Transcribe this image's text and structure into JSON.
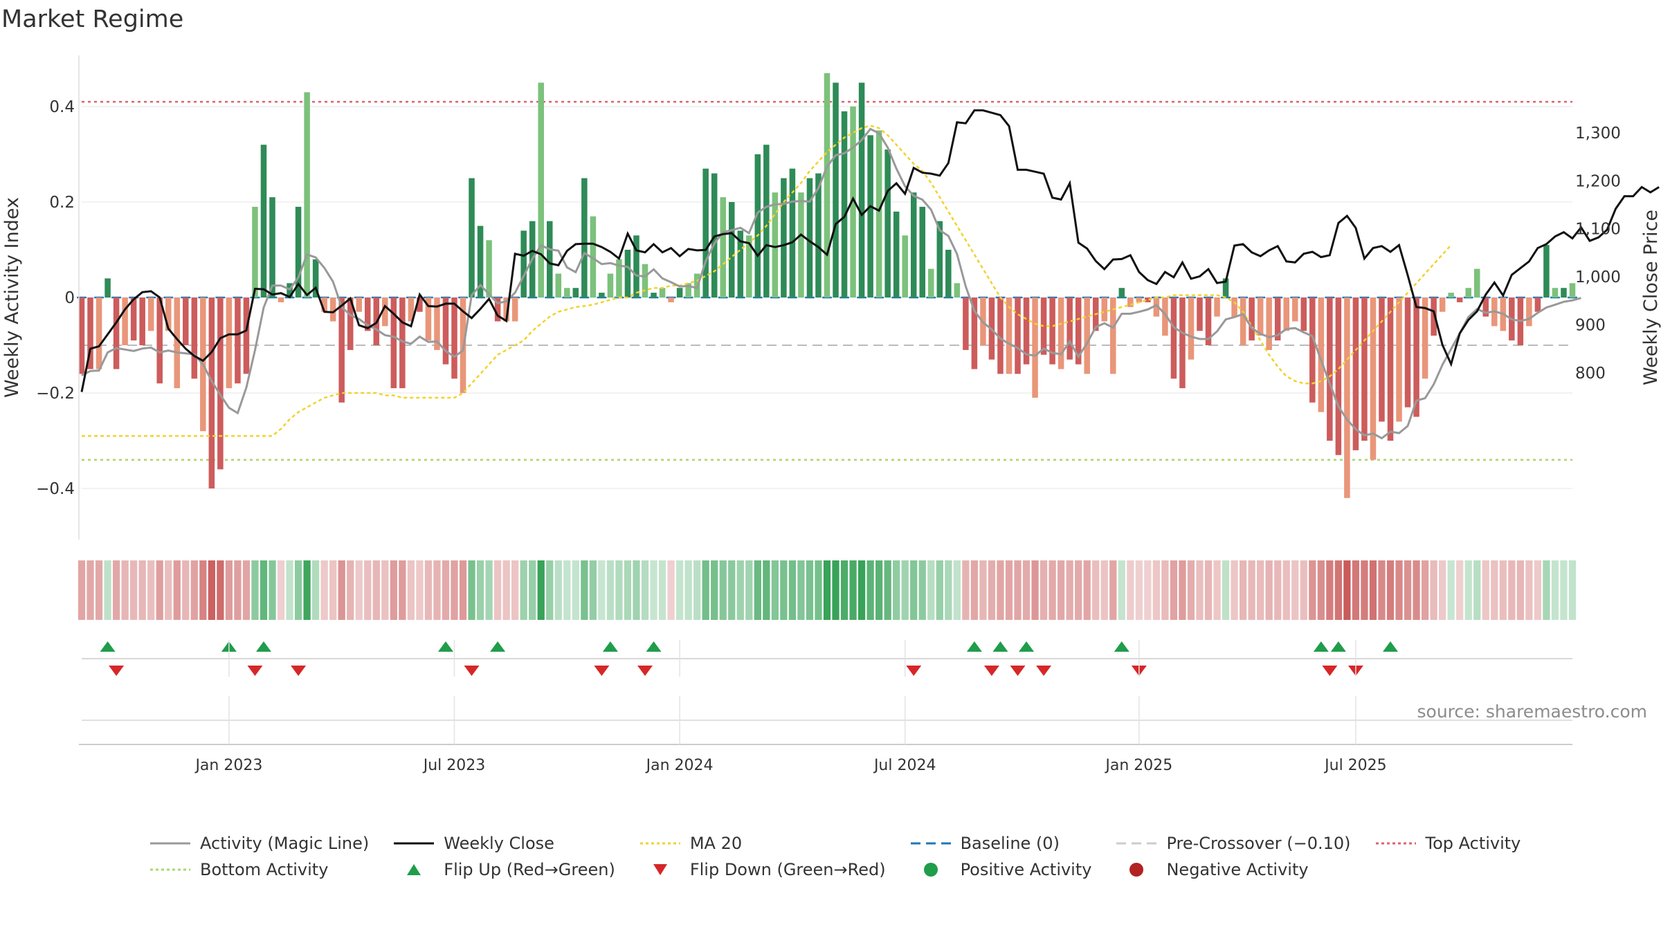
{
  "header": {
    "title": "Market Regime"
  },
  "footer": {
    "source": "source: sharemaestro.com"
  },
  "colors": {
    "strong_green": "#2e8b57",
    "light_green": "#7cc17c",
    "strong_red": "#cd5c5c",
    "light_red": "#e9967a",
    "close": "#111111",
    "magic": "#999999",
    "ma20": "#f2d22e",
    "baseline": "#1f77b4",
    "precross": "#bbbbbb",
    "top": "#e06070",
    "bottom": "#a8d86a",
    "flip_up": "#1f9d4a",
    "flip_down": "#d62728"
  },
  "chart_data": {
    "type": "bar+line",
    "xlabels": [
      "Jan 2023",
      "Jul 2023",
      "Jan 2024",
      "Jul 2024",
      "Jan 2025",
      "Jul 2025"
    ],
    "x_tick_weeks": [
      17,
      43,
      69,
      95,
      122,
      147
    ],
    "left_axis": {
      "label": "Weekly Activity Index",
      "ticks": [
        "0.4",
        "0.2",
        "0",
        "−0.2",
        "−0.4"
      ],
      "tick_values": [
        0.4,
        0.2,
        0,
        -0.2,
        -0.4
      ],
      "ylim": [
        -0.5,
        0.5
      ]
    },
    "right_axis": {
      "label": "Weekly Close Price",
      "ticks": [
        "1,300",
        "1,200",
        "1,100",
        "1,000",
        "900",
        "800"
      ],
      "tick_values": [
        1300,
        1200,
        1100,
        1000,
        900,
        800
      ],
      "ylim": [
        750,
        1350
      ]
    },
    "reference_lines": {
      "baseline": 0,
      "pre_crossover": -0.1,
      "top_activity": 0.41,
      "bottom_activity": -0.34
    },
    "activity": [
      -0.16,
      -0.15,
      -0.15,
      0.04,
      -0.15,
      -0.1,
      -0.09,
      -0.1,
      -0.07,
      -0.18,
      -0.07,
      -0.19,
      -0.1,
      -0.17,
      -0.28,
      -0.4,
      -0.36,
      -0.19,
      -0.18,
      -0.16,
      0.19,
      0.32,
      0.21,
      -0.01,
      0.03,
      0.19,
      0.43,
      0.08,
      -0.03,
      -0.05,
      -0.22,
      -0.11,
      -0.03,
      -0.07,
      -0.1,
      -0.06,
      -0.19,
      -0.19,
      -0.05,
      -0.03,
      -0.09,
      -0.11,
      -0.14,
      -0.17,
      -0.2,
      0.25,
      0.15,
      0.12,
      -0.05,
      -0.05,
      -0.05,
      0.14,
      0.16,
      0.45,
      0.16,
      0.05,
      0.02,
      0.02,
      0.25,
      0.17,
      0.01,
      0.05,
      0.08,
      0.1,
      0.13,
      0.07,
      0.01,
      0.02,
      -0.01,
      0.02,
      0.03,
      0.05,
      0.27,
      0.26,
      0.21,
      0.2,
      0.14,
      0.13,
      0.3,
      0.32,
      0.22,
      0.25,
      0.27,
      0.22,
      0.25,
      0.26,
      0.47,
      0.45,
      0.39,
      0.4,
      0.45,
      0.34,
      0.35,
      0.31,
      0.18,
      0.13,
      0.22,
      0.19,
      0.06,
      0.16,
      0.1,
      0.03,
      -0.11,
      -0.15,
      -0.1,
      -0.13,
      -0.16,
      -0.16,
      -0.16,
      -0.14,
      -0.21,
      -0.12,
      -0.14,
      -0.15,
      -0.13,
      -0.14,
      -0.16,
      -0.07,
      -0.05,
      -0.16,
      0.02,
      -0.02,
      -0.01,
      -0.01,
      -0.04,
      -0.08,
      -0.17,
      -0.19,
      -0.13,
      -0.07,
      -0.1,
      -0.04,
      0.04,
      -0.04,
      -0.1,
      -0.09,
      -0.08,
      -0.11,
      -0.09,
      -0.07,
      -0.05,
      -0.07,
      -0.22,
      -0.24,
      -0.3,
      -0.33,
      -0.42,
      -0.32,
      -0.3,
      -0.34,
      -0.26,
      -0.3,
      -0.26,
      -0.23,
      -0.25,
      -0.17,
      -0.08,
      -0.03,
      0.01,
      -0.01,
      0.02,
      0.06,
      -0.04,
      -0.06,
      -0.07,
      -0.09,
      -0.1,
      -0.06,
      -0.03,
      0.11,
      0.02,
      0.02,
      0.03
    ],
    "close": [
      760,
      850,
      855,
      880,
      905,
      932,
      953,
      968,
      970,
      957,
      892,
      870,
      850,
      835,
      825,
      843,
      872,
      880,
      880,
      888,
      975,
      974,
      963,
      966,
      958,
      985,
      962,
      977,
      927,
      926,
      940,
      955,
      899,
      893,
      904,
      939,
      923,
      905,
      897,
      963,
      939,
      938,
      944,
      944,
      928,
      914,
      933,
      954,
      919,
      908,
      1048,
      1044,
      1054,
      1047,
      1028,
      1024,
      1054,
      1068,
      1069,
      1069,
      1062,
      1052,
      1038,
      1090,
      1055,
      1051,
      1068,
      1051,
      1060,
      1043,
      1058,
      1055,
      1056,
      1084,
      1089,
      1091,
      1074,
      1070,
      1044,
      1066,
      1062,
      1066,
      1072,
      1088,
      1074,
      1062,
      1046,
      1110,
      1125,
      1163,
      1129,
      1147,
      1138,
      1179,
      1195,
      1173,
      1227,
      1217,
      1215,
      1211,
      1237,
      1322,
      1320,
      1347,
      1347,
      1342,
      1337,
      1314,
      1223,
      1223,
      1219,
      1215,
      1165,
      1161,
      1195,
      1071,
      1059,
      1033,
      1016,
      1036,
      1037,
      1045,
      1010,
      993,
      985,
      1010,
      999,
      1030,
      996,
      1001,
      1016,
      987,
      990,
      1065,
      1068,
      1051,
      1043,
      1055,
      1064,
      1032,
      1030,
      1048,
      1052,
      1041,
      1045,
      1112,
      1127,
      1102,
      1038,
      1060,
      1064,
      1052,
      1066,
      1003,
      937,
      935,
      928,
      858,
      818,
      882,
      910,
      928,
      963,
      988,
      961,
      1004,
      1018,
      1032,
      1060,
      1068,
      1084,
      1093,
      1080,
      1103,
      1075,
      1082,
      1098,
      1142,
      1168,
      1168,
      1187,
      1176,
      1187
    ],
    "magic_line": [
      -0.163,
      -0.154,
      -0.153,
      -0.115,
      -0.106,
      -0.109,
      -0.112,
      -0.107,
      -0.105,
      -0.115,
      -0.111,
      -0.115,
      -0.117,
      -0.119,
      -0.14,
      -0.175,
      -0.204,
      -0.231,
      -0.242,
      -0.189,
      -0.11,
      -0.021,
      0.025,
      0.025,
      0.017,
      0.042,
      0.09,
      0.084,
      0.062,
      0.033,
      -0.02,
      -0.037,
      -0.045,
      -0.058,
      -0.067,
      -0.079,
      -0.082,
      -0.092,
      -0.097,
      -0.082,
      -0.093,
      -0.092,
      -0.112,
      -0.124,
      -0.111,
      0.005,
      0.026,
      0.007,
      -0.012,
      -0.008,
      0.01,
      0.045,
      0.081,
      0.109,
      0.101,
      0.098,
      0.063,
      0.053,
      0.093,
      0.082,
      0.07,
      0.072,
      0.067,
      0.064,
      0.046,
      0.044,
      0.059,
      0.04,
      0.032,
      0.023,
      0.024,
      0.02,
      0.076,
      0.113,
      0.137,
      0.141,
      0.146,
      0.135,
      0.178,
      0.19,
      0.195,
      0.196,
      0.201,
      0.202,
      0.201,
      0.229,
      0.274,
      0.298,
      0.302,
      0.314,
      0.33,
      0.353,
      0.344,
      0.314,
      0.27,
      0.233,
      0.213,
      0.205,
      0.184,
      0.141,
      0.129,
      0.091,
      0.023,
      -0.028,
      -0.052,
      -0.067,
      -0.086,
      -0.097,
      -0.106,
      -0.119,
      -0.122,
      -0.107,
      -0.116,
      -0.119,
      -0.092,
      -0.124,
      -0.096,
      -0.062,
      -0.054,
      -0.063,
      -0.034,
      -0.034,
      -0.03,
      -0.025,
      -0.016,
      -0.035,
      -0.062,
      -0.074,
      -0.082,
      -0.087,
      -0.087,
      -0.071,
      -0.046,
      -0.041,
      -0.035,
      -0.064,
      -0.076,
      -0.083,
      -0.079,
      -0.066,
      -0.064,
      -0.073,
      -0.081,
      -0.131,
      -0.18,
      -0.228,
      -0.256,
      -0.276,
      -0.289,
      -0.285,
      -0.295,
      -0.281,
      -0.284,
      -0.269,
      -0.216,
      -0.211,
      -0.182,
      -0.141,
      -0.108,
      -0.075,
      -0.041,
      -0.024,
      -0.032,
      -0.029,
      -0.034,
      -0.046,
      -0.049,
      -0.045,
      -0.032,
      -0.021,
      -0.015,
      -0.009,
      -0.006,
      -0.001
    ],
    "ma20": [
      -0.29,
      -0.29,
      -0.29,
      -0.29,
      -0.29,
      -0.29,
      -0.29,
      -0.29,
      -0.29,
      -0.29,
      -0.29,
      -0.29,
      -0.29,
      -0.29,
      -0.29,
      -0.29,
      -0.29,
      -0.29,
      -0.29,
      -0.29,
      -0.29,
      -0.29,
      -0.29,
      -0.275,
      -0.255,
      -0.24,
      -0.23,
      -0.22,
      -0.21,
      -0.205,
      -0.2,
      -0.2,
      -0.2,
      -0.2,
      -0.2,
      -0.205,
      -0.205,
      -0.21,
      -0.21,
      -0.21,
      -0.21,
      -0.21,
      -0.21,
      -0.21,
      -0.2,
      -0.18,
      -0.16,
      -0.14,
      -0.12,
      -0.11,
      -0.1,
      -0.09,
      -0.07,
      -0.055,
      -0.04,
      -0.03,
      -0.025,
      -0.02,
      -0.018,
      -0.015,
      -0.01,
      -0.005,
      0,
      0,
      0.01,
      0.015,
      0.02,
      0.02,
      0.025,
      0.025,
      0.03,
      0.035,
      0.045,
      0.055,
      0.07,
      0.085,
      0.1,
      0.115,
      0.13,
      0.15,
      0.175,
      0.2,
      0.22,
      0.24,
      0.265,
      0.285,
      0.305,
      0.32,
      0.335,
      0.345,
      0.355,
      0.36,
      0.355,
      0.34,
      0.32,
      0.3,
      0.28,
      0.265,
      0.24,
      0.21,
      0.18,
      0.15,
      0.12,
      0.09,
      0.06,
      0.03,
      0,
      -0.02,
      -0.035,
      -0.045,
      -0.055,
      -0.06,
      -0.06,
      -0.055,
      -0.05,
      -0.045,
      -0.04,
      -0.035,
      -0.03,
      -0.025,
      -0.02,
      -0.015,
      -0.01,
      -0.005,
      0,
      0,
      0.005,
      0.005,
      0.005,
      0.005,
      0.005,
      0.005,
      0,
      -0.01,
      -0.03,
      -0.06,
      -0.09,
      -0.12,
      -0.145,
      -0.165,
      -0.175,
      -0.18,
      -0.18,
      -0.175,
      -0.165,
      -0.15,
      -0.13,
      -0.11,
      -0.09,
      -0.07,
      -0.05,
      -0.03,
      -0.01,
      0.01,
      0.03,
      0.05,
      0.07,
      0.09,
      0.11
    ],
    "flip_up_weeks": [
      3,
      17,
      21,
      42,
      48,
      61,
      66,
      103,
      106,
      109,
      120,
      143,
      145,
      151
    ],
    "flip_down_weeks": [
      4,
      20,
      25,
      45,
      60,
      65,
      96,
      105,
      108,
      111,
      122,
      144,
      147
    ]
  },
  "legend": [
    {
      "label": "Activity (Magic Line)",
      "kind": "line",
      "color": "#999999",
      "dash": ""
    },
    {
      "label": "Weekly Close",
      "kind": "line",
      "color": "#111111",
      "dash": ""
    },
    {
      "label": "MA 20",
      "kind": "line",
      "color": "#f2d22e",
      "dash": "4,4"
    },
    {
      "label": "Baseline (0)",
      "kind": "line",
      "color": "#1f77b4",
      "dash": "14,8"
    },
    {
      "label": "Pre-Crossover (−0.10)",
      "kind": "line",
      "color": "#cccccc",
      "dash": "14,8"
    },
    {
      "label": "Top Activity",
      "kind": "line",
      "color": "#e06070",
      "dash": "4,4"
    },
    {
      "label": "Bottom Activity",
      "kind": "line",
      "color": "#a8d86a",
      "dash": "4,4"
    },
    {
      "label": "Flip Up (Red→Green)",
      "kind": "tri-up",
      "color": "#1f9d4a",
      "dash": ""
    },
    {
      "label": "Flip Down (Green→Red)",
      "kind": "tri-down",
      "color": "#d62728",
      "dash": ""
    },
    {
      "label": "Positive Activity",
      "kind": "dot",
      "color": "#1f9d4a",
      "dash": ""
    },
    {
      "label": "Negative Activity",
      "kind": "dot",
      "color": "#b22222",
      "dash": ""
    }
  ]
}
